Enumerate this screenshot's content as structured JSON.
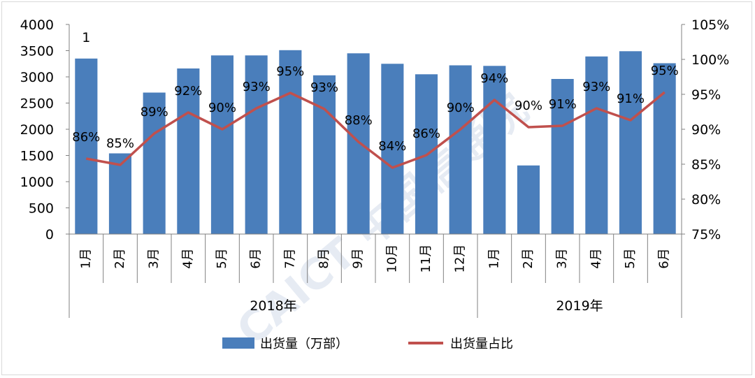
{
  "chart_data": {
    "type": "bar+line",
    "watermark": "CAICT 中国信通院",
    "stray_label": "1",
    "categories": [
      "1月",
      "2月",
      "3月",
      "4月",
      "5月",
      "6月",
      "7月",
      "8月",
      "9月",
      "10月",
      "11月",
      "12月",
      "1月",
      "2月",
      "3月",
      "4月",
      "5月",
      "6月"
    ],
    "year_groups": [
      {
        "label": "2018年",
        "count": 12
      },
      {
        "label": "2019年",
        "count": 6
      }
    ],
    "series": [
      {
        "name": "出货量（万部）",
        "type": "bar",
        "axis": "left",
        "color": "#4a7ebb",
        "values": [
          3350,
          1540,
          2700,
          3160,
          3410,
          3410,
          3510,
          3030,
          3450,
          3250,
          3050,
          3220,
          3210,
          1310,
          2960,
          3390,
          3490,
          3260
        ]
      },
      {
        "name": "出货量占比",
        "type": "line",
        "axis": "right",
        "color": "#c0504d",
        "values": [
          85.8,
          84.9,
          89.4,
          92.4,
          90.0,
          93.0,
          95.2,
          92.9,
          88.2,
          84.5,
          86.3,
          90.0,
          94.2,
          90.3,
          90.5,
          93.0,
          91.3,
          95.3
        ],
        "labels": [
          "86%",
          "85%",
          "89%",
          "92%",
          "90%",
          "93%",
          "95%",
          "93%",
          "88%",
          "84%",
          "86%",
          "90%",
          "94%",
          "90%",
          "91%",
          "93%",
          "91%",
          "95%"
        ]
      }
    ],
    "y_left": {
      "min": 0,
      "max": 4000,
      "step": 500,
      "ticks": [
        "0",
        "500",
        "1000",
        "1500",
        "2000",
        "2500",
        "3000",
        "3500",
        "4000"
      ]
    },
    "y_right": {
      "min": 75,
      "max": 105,
      "step": 5,
      "ticks": [
        "75%",
        "80%",
        "85%",
        "90%",
        "95%",
        "100%",
        "105%"
      ]
    },
    "legend": {
      "position": "bottom",
      "items": [
        {
          "label": "出货量（万部）",
          "kind": "bar",
          "color": "#4a7ebb"
        },
        {
          "label": "出货量占比",
          "kind": "line",
          "color": "#c0504d"
        }
      ]
    }
  }
}
